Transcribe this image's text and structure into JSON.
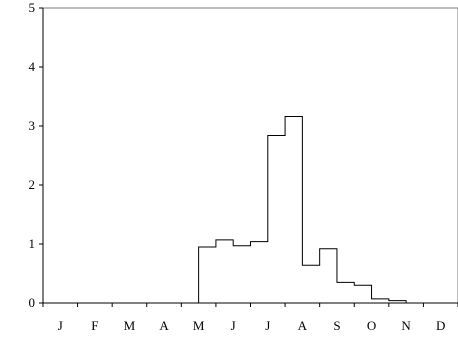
{
  "chart_data": {
    "type": "step-histogram",
    "title": "",
    "xlabel": "",
    "ylabel": "",
    "ylim": [
      0,
      5
    ],
    "yticks": [
      "0",
      "1",
      "2",
      "3",
      "4",
      "5"
    ],
    "categories": [
      "J",
      "F",
      "M",
      "A",
      "M",
      "J",
      "J",
      "A",
      "S",
      "O",
      "N",
      "D"
    ],
    "bins_per_month": 2,
    "values": [
      0,
      0,
      0,
      0,
      0,
      0,
      0,
      0,
      0,
      0.95,
      1.07,
      0.97,
      1.04,
      2.84,
      3.16,
      0.64,
      0.92,
      0.35,
      0.3,
      0.07,
      0.04,
      0,
      0,
      0
    ],
    "grid": false,
    "legend": "none"
  }
}
